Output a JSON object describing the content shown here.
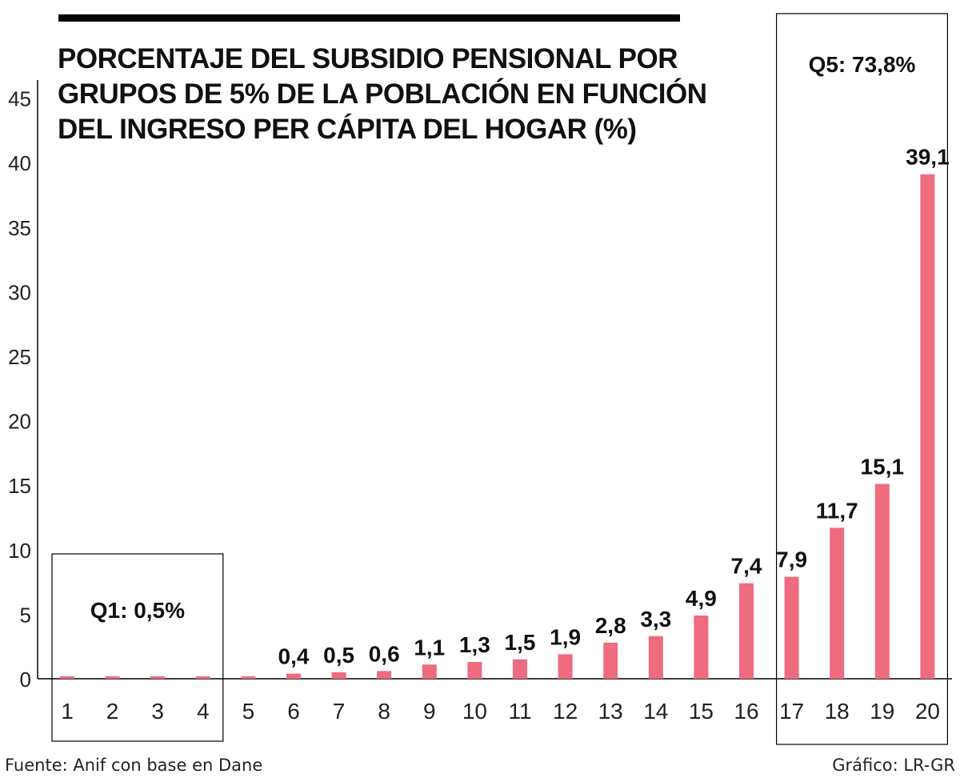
{
  "title_lines": [
    "PORCENTAJE DEL SUBSIDIO PENSIONAL POR",
    "GRUPOS DE 5% DE LA POBLACIÓN EN FUNCIÓN",
    "DEL INGRESO PER CÁPITA DEL HOGAR (%)"
  ],
  "source": "Fuente: Anif con base en Dane",
  "credit": "Gráfico: LR-GR",
  "colors": {
    "bar": "#ee6b80",
    "text": "#111111",
    "axis": "#000000"
  },
  "chart_data": {
    "type": "bar",
    "title": "PORCENTAJE DEL SUBSIDIO PENSIONAL POR GRUPOS DE 5% DE LA POBLACIÓN EN FUNCIÓN DEL INGRESO PER CÁPITA DEL HOGAR (%)",
    "xlabel": "",
    "ylabel": "",
    "ylim": [
      0,
      45
    ],
    "yticks": [
      0,
      5,
      10,
      15,
      20,
      25,
      30,
      35,
      40,
      45
    ],
    "categories": [
      "1",
      "2",
      "3",
      "4",
      "5",
      "6",
      "7",
      "8",
      "9",
      "10",
      "11",
      "12",
      "13",
      "14",
      "15",
      "16",
      "17",
      "18",
      "19",
      "20"
    ],
    "values": [
      0.1,
      0.1,
      0.1,
      0.1,
      0.1,
      0.4,
      0.5,
      0.6,
      1.1,
      1.3,
      1.5,
      1.9,
      2.8,
      3.3,
      4.9,
      7.4,
      7.9,
      11.7,
      15.1,
      39.1
    ],
    "labels": [
      "",
      "",
      "",
      "",
      "",
      "0,4",
      "0,5",
      "0,6",
      "1,1",
      "1,3",
      "1,5",
      "1,9",
      "2,8",
      "3,3",
      "4,9",
      "7,4",
      "7,9",
      "11,7",
      "15,1",
      "39,1"
    ],
    "grid": false,
    "annotations": [
      {
        "text": "Q1: 0,5%",
        "groups": [
          1,
          4
        ]
      },
      {
        "text": "Q5: 73,8%",
        "groups": [
          17,
          20
        ]
      }
    ]
  }
}
